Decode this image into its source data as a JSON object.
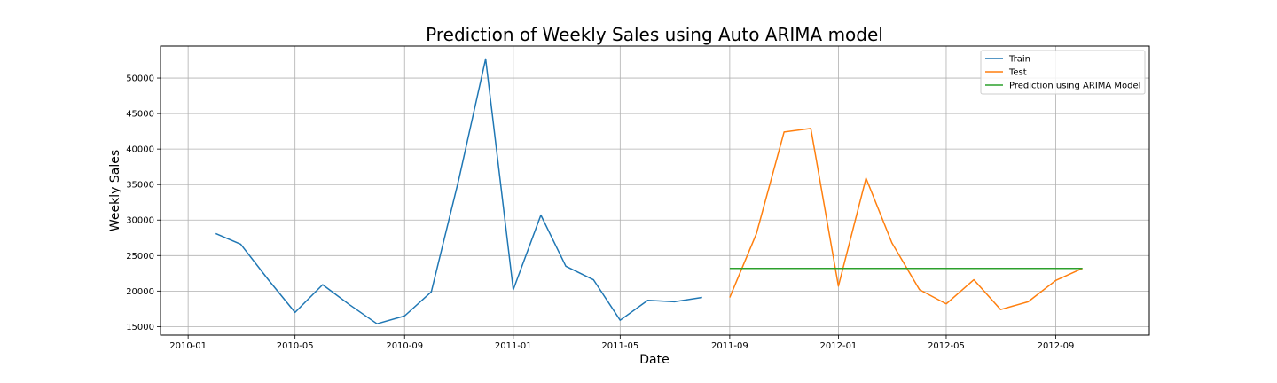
{
  "chart_data": {
    "type": "line",
    "title": "Prediction of Weekly Sales using Auto ARIMA model",
    "xlabel": "Date",
    "ylabel": "Weekly Sales",
    "xlim": [
      "2009-12-01",
      "2012-12-15"
    ],
    "ylim": [
      13800,
      54500
    ],
    "grid": true,
    "legend_position": "top-right",
    "x_ticks": [
      "2010-01",
      "2010-05",
      "2010-09",
      "2011-01",
      "2011-05",
      "2011-09",
      "2012-01",
      "2012-05",
      "2012-09"
    ],
    "y_ticks": [
      15000,
      20000,
      25000,
      30000,
      35000,
      40000,
      45000,
      50000
    ],
    "series": [
      {
        "name": "Train",
        "color": "#1f77b4",
        "x": [
          "2010-02-01",
          "2010-03-01",
          "2010-04-01",
          "2010-05-01",
          "2010-06-01",
          "2010-07-01",
          "2010-08-01",
          "2010-09-01",
          "2010-10-01",
          "2010-11-01",
          "2010-12-01",
          "2011-01-01",
          "2011-02-01",
          "2011-03-01",
          "2011-04-01",
          "2011-05-01",
          "2011-06-01",
          "2011-07-01",
          "2011-08-01"
        ],
        "y": [
          28100,
          26600,
          21600,
          17000,
          20900,
          18100,
          15400,
          16500,
          19900,
          35800,
          52700,
          20200,
          30700,
          23500,
          21600,
          15900,
          18700,
          18500,
          19100
        ]
      },
      {
        "name": "Test",
        "color": "#ff7f0e",
        "x": [
          "2011-09-01",
          "2011-10-01",
          "2011-11-01",
          "2011-12-01",
          "2012-01-01",
          "2012-02-01",
          "2012-03-01",
          "2012-04-01",
          "2012-05-01",
          "2012-06-01",
          "2012-07-01",
          "2012-08-01",
          "2012-09-01",
          "2012-10-01"
        ],
        "y": [
          19100,
          28100,
          42400,
          42900,
          20700,
          35900,
          26800,
          20200,
          18200,
          21600,
          17400,
          18500,
          21500,
          23200
        ]
      },
      {
        "name": "Prediction using ARIMA Model",
        "color": "#2ca02c",
        "x": [
          "2011-09-01",
          "2012-10-01"
        ],
        "y": [
          23200,
          23200
        ]
      }
    ]
  }
}
